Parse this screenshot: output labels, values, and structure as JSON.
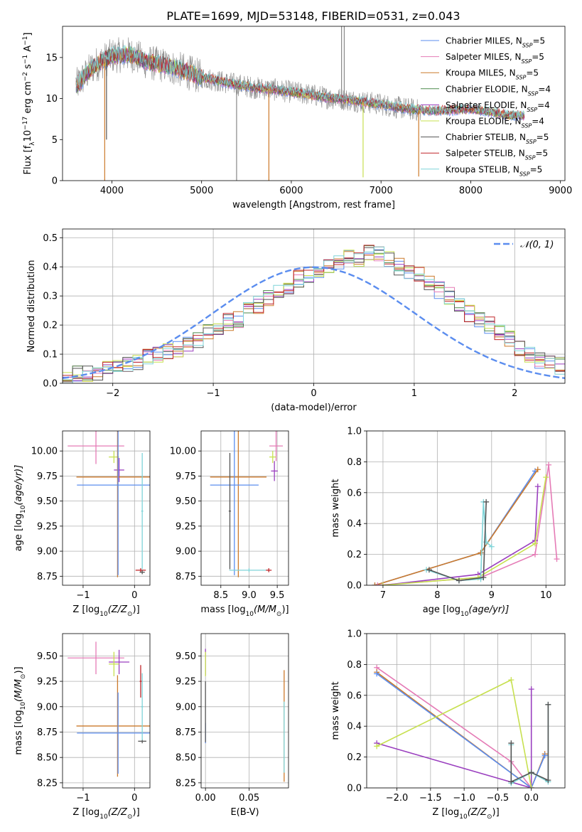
{
  "figure": {
    "title": "PLATE=1699, MJD=53148, FIBERID=0531, z=0.043"
  },
  "colors": {
    "Chabrier MILES": "#5b8def",
    "Salpeter MILES": "#e57bb6",
    "Kroupa MILES": "#cc7a2b",
    "Chabrier ELODIE": "#4b8a4b",
    "Salpeter ELODIE": "#9a3fbf",
    "Kroupa ELODIE": "#c7e050",
    "Chabrier STELIB": "#555555",
    "Salpeter STELIB": "#c0262a",
    "Kroupa STELIB": "#7fd4d8",
    "normal": "#5b8def",
    "observed": "#888888"
  },
  "chart_data": [
    {
      "id": "spectrum",
      "type": "line",
      "xlabel": "wavelength [Angstrom, rest frame]",
      "ylabel": "Flux [f",
      "ylabel_sub": "λ",
      "ylabel_mid": "10",
      "ylabel_sup1": "−17",
      "ylabel_mid2": " erg cm",
      "ylabel_sup2": "−2",
      "ylabel_mid3": " s",
      "ylabel_sup3": "−1",
      "ylabel_end": " A",
      "ylabel_sup4": "−1",
      "ylabel_close": "]",
      "xlim": [
        3450,
        9050
      ],
      "ylim": [
        0,
        18.8
      ],
      "xticks": [
        4000,
        5000,
        6000,
        7000,
        8000,
        9000
      ],
      "yticks": [
        0,
        5,
        10,
        15
      ],
      "legend": [
        {
          "name": "Chabrier MILES",
          "pre": "Chabrier MILES, N",
          "sub": "SSP",
          "post": "=5"
        },
        {
          "name": "Salpeter MILES",
          "pre": "Salpeter MILES, N",
          "sub": "SSP",
          "post": "=5"
        },
        {
          "name": "Kroupa MILES",
          "pre": "Kroupa MILES, N",
          "sub": "SSP",
          "post": "=5"
        },
        {
          "name": "Chabrier ELODIE",
          "pre": "Chabrier ELODIE, N",
          "sub": "SSP",
          "post": "=4"
        },
        {
          "name": "Salpeter ELODIE",
          "pre": "Salpeter ELODIE, N",
          "sub": "SSP",
          "post": "=4"
        },
        {
          "name": "Kroupa ELODIE",
          "pre": "Kroupa ELODIE, N",
          "sub": "SSP",
          "post": "=4"
        },
        {
          "name": "Chabrier STELIB",
          "pre": "Chabrier STELIB, N",
          "sub": "SSP",
          "post": "=5"
        },
        {
          "name": "Salpeter STELIB",
          "pre": "Salpeter STELIB, N",
          "sub": "SSP",
          "post": "=5"
        },
        {
          "name": "Kroupa STELIB",
          "pre": "Kroupa STELIB, N",
          "sub": "SSP",
          "post": "=5"
        }
      ],
      "legend_position": "upper-right",
      "continuum": [
        [
          3600,
          11.5
        ],
        [
          3800,
          14.0
        ],
        [
          4000,
          15.2
        ],
        [
          4200,
          15.4
        ],
        [
          4400,
          14.4
        ],
        [
          4600,
          14.0
        ],
        [
          4800,
          13.4
        ],
        [
          5000,
          12.6
        ],
        [
          5200,
          12.1
        ],
        [
          5400,
          11.7
        ],
        [
          5600,
          11.3
        ],
        [
          5800,
          11.1
        ],
        [
          6000,
          10.8
        ],
        [
          6200,
          10.5
        ],
        [
          6400,
          10.1
        ],
        [
          6600,
          9.9
        ],
        [
          6800,
          9.6
        ],
        [
          7000,
          9.3
        ],
        [
          7200,
          8.9
        ],
        [
          7400,
          8.6
        ],
        [
          7600,
          8.5
        ],
        [
          7800,
          8.6
        ],
        [
          8000,
          8.7
        ],
        [
          8200,
          8.4
        ],
        [
          8400,
          8.0
        ],
        [
          8600,
          7.9
        ]
      ],
      "model_x_range": [
        3600,
        8600
      ],
      "observed_x_range": [
        3600,
        7450
      ],
      "spikes": [
        {
          "x": 3920,
          "y": 0.0,
          "series": "Kroupa MILES"
        },
        {
          "x": 5750,
          "y": 0.0,
          "series": "Kroupa MILES"
        },
        {
          "x": 7420,
          "y": 0.5,
          "series": "Kroupa MILES"
        },
        {
          "x": 6800,
          "y": 0.4,
          "series": "Kroupa ELODIE"
        },
        {
          "x": 3940,
          "y": 5.0,
          "series": "Chabrier STELIB"
        },
        {
          "x": 5390,
          "y": 0.0,
          "series": "observed"
        },
        {
          "x": 6560,
          "y": 18.8,
          "series": "observed"
        },
        {
          "x": 6590,
          "y": 18.8,
          "series": "observed"
        }
      ]
    },
    {
      "id": "residuals",
      "type": "histogram",
      "xlabel": "(data-model)/error",
      "ylabel": "Normed distribution",
      "xlim": [
        -2.5,
        2.5
      ],
      "ylim": [
        0,
        0.53
      ],
      "xticks": [
        -2,
        -1,
        0,
        1,
        2
      ],
      "yticks": [
        0.0,
        0.1,
        0.2,
        0.3,
        0.4,
        0.5
      ],
      "legend": [
        {
          "name": "𝒩(0, 1)"
        }
      ],
      "legend_position": "upper-right",
      "bin_width": 0.1,
      "bins_start": -2.5,
      "reference_values": [
        0.02,
        0.03,
        0.03,
        0.04,
        0.05,
        0.06,
        0.06,
        0.07,
        0.09,
        0.1,
        0.11,
        0.12,
        0.14,
        0.15,
        0.18,
        0.19,
        0.21,
        0.22,
        0.25,
        0.27,
        0.29,
        0.31,
        0.33,
        0.36,
        0.37,
        0.39,
        0.4,
        0.42,
        0.44,
        0.43,
        0.45,
        0.44,
        0.43,
        0.4,
        0.38,
        0.37,
        0.35,
        0.32,
        0.3,
        0.27,
        0.24,
        0.22,
        0.2,
        0.17,
        0.15,
        0.12,
        0.1,
        0.08,
        0.07,
        0.06
      ],
      "normal_curve": {
        "mean": 0,
        "sigma": 1
      }
    },
    {
      "id": "age-vs-Z",
      "type": "errorbar",
      "xlabel": "Z [log",
      "xlabel_sub": "10",
      "xlabel_end": "(Z/Z",
      "xlabel_sun": "⊙",
      "xlabel_close": ")]",
      "ylabel": "age  [log",
      "ylabel_sub": "10",
      "ylabel_end": "(age/yr)]",
      "xlim": [
        -1.4,
        0.3
      ],
      "ylim": [
        8.66,
        10.2
      ],
      "xticks": [
        -1,
        0
      ],
      "yticks": [
        8.75,
        9.0,
        9.25,
        9.5,
        9.75,
        10.0
      ],
      "points": [
        {
          "series": "Salpeter MILES",
          "x": -0.75,
          "xerr": 0.55,
          "y": 10.05,
          "yerr": 0.18
        },
        {
          "series": "Kroupa ELODIE",
          "x": -0.4,
          "xerr": 0.1,
          "y": 9.94,
          "yerr": 0.06
        },
        {
          "series": "Salpeter ELODIE",
          "x": -0.3,
          "xerr": 0.1,
          "y": 9.81,
          "yerr": 0.12
        },
        {
          "series": "Kroupa MILES",
          "x": -0.33,
          "xerr": 0.8,
          "y": 9.74,
          "yerr": 1.0
        },
        {
          "series": "Chabrier MILES",
          "x": -0.32,
          "xerr": 0.8,
          "y": 9.66,
          "yerr": 0.9
        },
        {
          "series": "Salpeter STELIB",
          "x": 0.12,
          "xerr": 0.1,
          "y": 8.81,
          "yerr": 0.02
        },
        {
          "series": "Chabrier STELIB",
          "x": 0.15,
          "xerr": 0.05,
          "y": 8.79,
          "yerr": 0.02
        },
        {
          "series": "Kroupa STELIB",
          "x": 0.15,
          "xerr": 0.02,
          "y": 9.4,
          "yerr": 0.58
        }
      ]
    },
    {
      "id": "age-vs-mass",
      "type": "errorbar",
      "xlabel": "mass [log",
      "xlabel_sub": "10",
      "xlabel_end": "(M/M",
      "xlabel_sun": "⊙",
      "xlabel_close": ")]",
      "xlim": [
        8.15,
        9.7
      ],
      "ylim": [
        8.66,
        10.2
      ],
      "xticks": [
        8.5,
        9.0,
        9.5
      ],
      "yticks": [
        8.75,
        9.0,
        9.25,
        9.5,
        9.75,
        10.0
      ],
      "points": [
        {
          "series": "Salpeter MILES",
          "x": 9.48,
          "xerr": 0.12,
          "y": 10.05,
          "yerr": 0.15
        },
        {
          "series": "Kroupa ELODIE",
          "x": 9.42,
          "xerr": 0.06,
          "y": 9.94,
          "yerr": 0.06
        },
        {
          "series": "Salpeter ELODIE",
          "x": 9.45,
          "xerr": 0.06,
          "y": 9.8,
          "yerr": 0.1
        },
        {
          "series": "Kroupa MILES",
          "x": 8.81,
          "xerr": 0.5,
          "y": 9.74,
          "yerr": 1.0
        },
        {
          "series": "Chabrier MILES",
          "x": 8.74,
          "xerr": 0.43,
          "y": 9.66,
          "yerr": 0.9
        },
        {
          "series": "Chabrier STELIB",
          "x": 8.66,
          "xerr": 0.02,
          "y": 9.4,
          "yerr": 0.58
        },
        {
          "series": "Kroupa STELIB",
          "x": 9.0,
          "xerr": 0.35,
          "y": 8.81,
          "yerr": 0.02
        },
        {
          "series": "Salpeter STELIB",
          "x": 9.35,
          "xerr": 0.05,
          "y": 8.81,
          "yerr": 0.02
        }
      ]
    },
    {
      "id": "weight-vs-age",
      "type": "line",
      "xlabel": "age  [log",
      "xlabel_sub": "10",
      "xlabel_end": "(age/yr)]",
      "ylabel": "mass weight",
      "xlim": [
        6.7,
        10.35
      ],
      "ylim": [
        0,
        1.0
      ],
      "xticks": [
        7,
        8,
        9,
        10
      ],
      "yticks": [
        0.0,
        0.2,
        0.4,
        0.6,
        0.8,
        1.0
      ],
      "series": [
        {
          "name": "Chabrier MILES",
          "points": [
            [
              6.85,
              0.0
            ],
            [
              8.8,
              0.21
            ],
            [
              9.8,
              0.74
            ]
          ]
        },
        {
          "name": "Kroupa MILES",
          "points": [
            [
              6.85,
              0.0
            ],
            [
              8.8,
              0.21
            ],
            [
              9.85,
              0.75
            ]
          ]
        },
        {
          "name": "Salpeter MILES",
          "points": [
            [
              6.9,
              0.0
            ],
            [
              8.8,
              0.05
            ],
            [
              9.8,
              0.2
            ],
            [
              10.05,
              0.78
            ],
            [
              10.2,
              0.17
            ]
          ]
        },
        {
          "name": "Salpeter ELODIE",
          "points": [
            [
              7.0,
              0.0
            ],
            [
              8.75,
              0.07
            ],
            [
              9.8,
              0.29
            ],
            [
              9.85,
              0.64
            ]
          ]
        },
        {
          "name": "Kroupa ELODIE",
          "points": [
            [
              7.0,
              0.0
            ],
            [
              8.75,
              0.05
            ],
            [
              9.8,
              0.27
            ],
            [
              10.0,
              0.7
            ]
          ]
        },
        {
          "name": "Kroupa STELIB",
          "points": [
            [
              7.8,
              0.1
            ],
            [
              8.4,
              0.03
            ],
            [
              8.8,
              0.04
            ],
            [
              8.85,
              0.54
            ],
            [
              8.9,
              0.28
            ],
            [
              9.0,
              0.25
            ]
          ]
        },
        {
          "name": "Chabrier STELIB",
          "points": [
            [
              7.85,
              0.1
            ],
            [
              8.4,
              0.03
            ],
            [
              8.85,
              0.05
            ],
            [
              8.9,
              0.54
            ]
          ]
        }
      ]
    },
    {
      "id": "mass-vs-Z",
      "type": "errorbar",
      "xlabel": "Z [log",
      "xlabel_sub": "10",
      "xlabel_end": "(Z/Z",
      "xlabel_sun": "⊙",
      "xlabel_close": ")]",
      "ylabel": "mass [log",
      "ylabel_sub": "10",
      "ylabel_end": "(M/M",
      "ylabel_sun": "⊙",
      "ylabel_close": ")]",
      "xlim": [
        -1.4,
        0.3
      ],
      "ylim": [
        8.2,
        9.72
      ],
      "xticks": [
        -1,
        0
      ],
      "yticks": [
        8.25,
        8.5,
        8.75,
        9.0,
        9.25,
        9.5
      ],
      "points": [
        {
          "series": "Salpeter MILES",
          "x": -0.75,
          "xerr": 0.55,
          "y": 9.48,
          "yerr": 0.16
        },
        {
          "series": "Salpeter ELODIE",
          "x": -0.3,
          "xerr": 0.2,
          "y": 9.44,
          "yerr": 0.12
        },
        {
          "series": "Kroupa ELODIE",
          "x": -0.4,
          "xerr": 0.1,
          "y": 9.42,
          "yerr": 0.12
        },
        {
          "series": "Kroupa MILES",
          "x": -0.33,
          "xerr": 0.8,
          "y": 8.81,
          "yerr": 0.5
        },
        {
          "series": "Chabrier MILES",
          "x": -0.32,
          "xerr": 0.8,
          "y": 8.74,
          "yerr": 0.4
        },
        {
          "series": "Salpeter STELIB",
          "x": 0.12,
          "xerr": 0.02,
          "y": 9.25,
          "yerr": 0.16
        },
        {
          "series": "Chabrier STELIB",
          "x": 0.15,
          "xerr": 0.08,
          "y": 8.66,
          "yerr": 0.02
        },
        {
          "series": "Kroupa STELIB",
          "x": 0.15,
          "xerr": 0.02,
          "y": 9.0,
          "yerr": 0.33
        }
      ]
    },
    {
      "id": "mass-vs-EBV",
      "type": "errorbar",
      "xlabel": "E(B-V)",
      "xlim": [
        -0.005,
        0.095
      ],
      "ylim": [
        8.2,
        9.72
      ],
      "xticks": [
        0.0,
        0.05
      ],
      "yticks": [
        8.25,
        8.5,
        8.75,
        9.0,
        9.25,
        9.5
      ],
      "points": [
        {
          "series": "Salpeter ELODIE",
          "x": 0.0,
          "xerr": 0.0,
          "y": 9.44,
          "yerr": 0.13
        },
        {
          "series": "Kroupa ELODIE",
          "x": 0.0,
          "xerr": 0.0,
          "y": 9.42,
          "yerr": 0.12
        },
        {
          "series": "Chabrier MILES",
          "x": 0.0,
          "xerr": 0.0,
          "y": 8.74,
          "yerr": 0.1
        },
        {
          "series": "Chabrier STELIB",
          "x": 0.0,
          "xerr": 0.0,
          "y": 8.95,
          "yerr": 0.3
        },
        {
          "series": "Kroupa MILES",
          "x": 0.09,
          "xerr": 0.0,
          "y": 8.81,
          "yerr": 0.55
        },
        {
          "series": "Kroupa STELIB",
          "x": 0.09,
          "xerr": 0.0,
          "y": 8.7,
          "yerr": 0.35
        }
      ]
    },
    {
      "id": "weight-vs-Z",
      "type": "line",
      "xlabel": "Z [log",
      "xlabel_sub": "10",
      "xlabel_end": "(Z/Z",
      "xlabel_sun": "⊙",
      "xlabel_close": ")]",
      "ylabel": "mass weight",
      "xlim": [
        -2.45,
        0.5
      ],
      "ylim": [
        0,
        1.0
      ],
      "xticks": [
        -2.0,
        -1.5,
        -1.0,
        -0.5,
        0.0
      ],
      "yticks": [
        0.0,
        0.2,
        0.4,
        0.6,
        0.8,
        1.0
      ],
      "xtick_labels": [
        "−2.0",
        "−1.5",
        "−1.0",
        "−0.5",
        "0.0"
      ],
      "series": [
        {
          "name": "Salpeter MILES",
          "points": [
            [
              -2.3,
              0.78
            ],
            [
              -0.3,
              0.17
            ],
            [
              0.0,
              0.0
            ]
          ]
        },
        {
          "name": "Kroupa MILES",
          "points": [
            [
              -2.3,
              0.75
            ],
            [
              0.0,
              0.0
            ],
            [
              0.2,
              0.22
            ]
          ]
        },
        {
          "name": "Chabrier MILES",
          "points": [
            [
              -2.3,
              0.74
            ],
            [
              0.0,
              0.0
            ],
            [
              0.2,
              0.21
            ]
          ]
        },
        {
          "name": "Salpeter ELODIE",
          "points": [
            [
              -2.3,
              0.29
            ],
            [
              0.0,
              0.0
            ],
            [
              0.0,
              0.64
            ]
          ]
        },
        {
          "name": "Kroupa ELODIE",
          "points": [
            [
              -2.3,
              0.27
            ],
            [
              -0.3,
              0.7
            ],
            [
              0.0,
              0.0
            ]
          ]
        },
        {
          "name": "Kroupa STELIB",
          "points": [
            [
              -0.3,
              0.28
            ],
            [
              -0.3,
              0.03
            ],
            [
              0.0,
              0.1
            ],
            [
              0.25,
              0.04
            ],
            [
              0.25,
              0.54
            ]
          ]
        },
        {
          "name": "Chabrier STELIB",
          "points": [
            [
              -0.3,
              0.29
            ],
            [
              -0.3,
              0.04
            ],
            [
              0.0,
              0.1
            ],
            [
              0.25,
              0.05
            ],
            [
              0.25,
              0.54
            ]
          ]
        }
      ]
    }
  ]
}
